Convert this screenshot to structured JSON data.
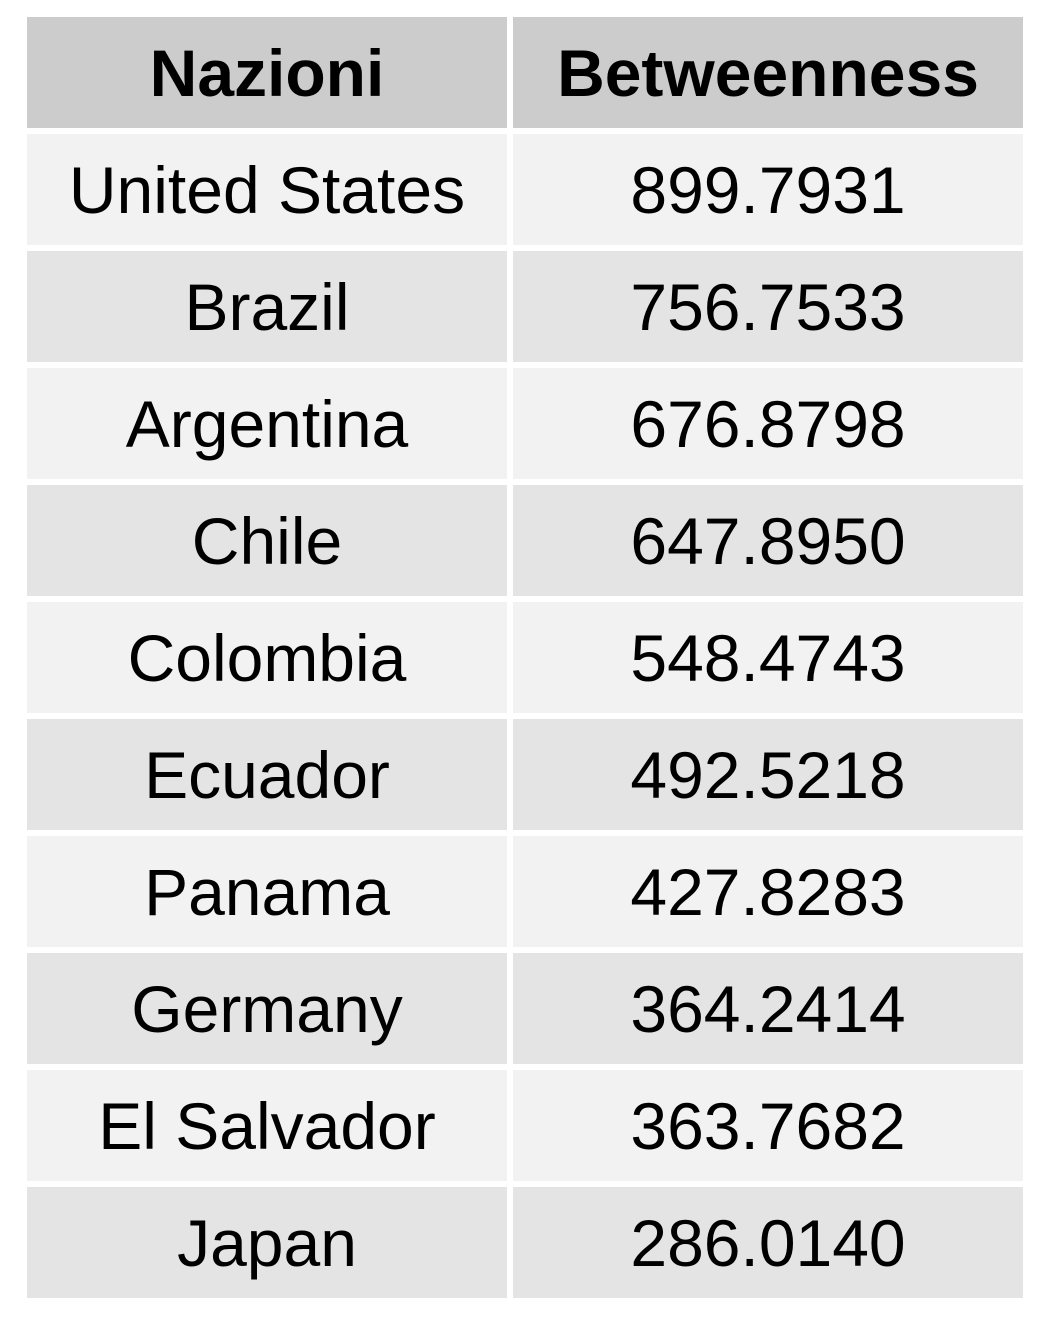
{
  "chart_data": {
    "type": "table",
    "columns": [
      "Nazioni",
      "Betweenness"
    ],
    "rows": [
      {
        "country": "United States",
        "value": "899.7931"
      },
      {
        "country": "Brazil",
        "value": "756.7533"
      },
      {
        "country": "Argentina",
        "value": "676.8798"
      },
      {
        "country": "Chile",
        "value": "647.8950"
      },
      {
        "country": "Colombia",
        "value": "548.4743"
      },
      {
        "country": "Ecuador",
        "value": "492.5218"
      },
      {
        "country": "Panama",
        "value": "427.8283"
      },
      {
        "country": "Germany",
        "value": "364.2414"
      },
      {
        "country": "El Salvador",
        "value": "363.7682"
      },
      {
        "country": "Japan",
        "value": "286.0140"
      }
    ]
  },
  "colors": {
    "header_bg": "#cccccc",
    "row_light": "#f2f2f2",
    "row_dark": "#e4e4e4",
    "separator": "#ffffff"
  }
}
